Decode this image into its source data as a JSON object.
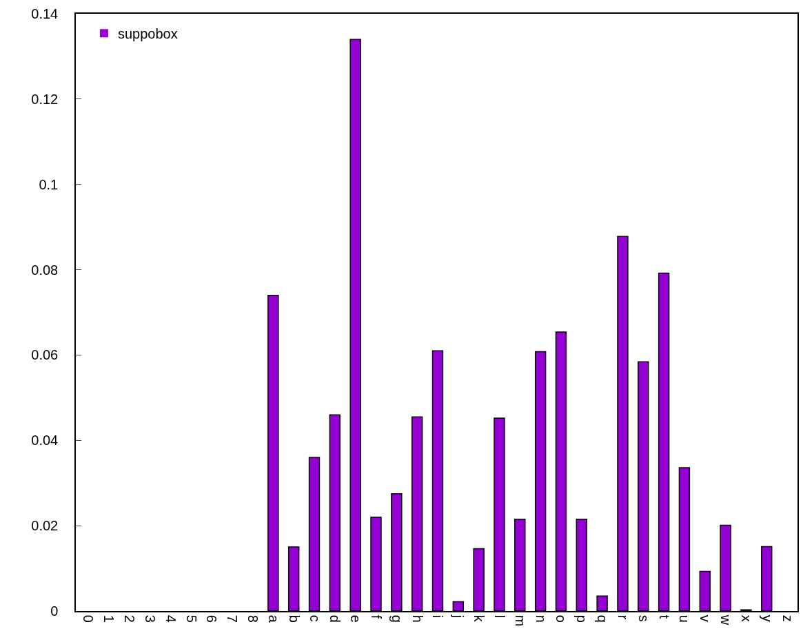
{
  "chart_data": {
    "type": "bar",
    "categories": [
      "0",
      "1",
      "2",
      "3",
      "4",
      "5",
      "6",
      "7",
      "8",
      "a",
      "b",
      "c",
      "d",
      "e",
      "f",
      "g",
      "h",
      "i",
      "j",
      "k",
      "l",
      "m",
      "n",
      "o",
      "p",
      "q",
      "r",
      "s",
      "t",
      "u",
      "v",
      "w",
      "x",
      "y",
      "z"
    ],
    "series": [
      {
        "name": "suppobox",
        "color": "#9400d3",
        "values": [
          0,
          0,
          0,
          0,
          0,
          0,
          0,
          0,
          0,
          0.074,
          0.015,
          0.036,
          0.046,
          0.134,
          0.022,
          0.0275,
          0.0455,
          0.061,
          0.0022,
          0.0146,
          0.0452,
          0.0215,
          0.0608,
          0.0654,
          0.0215,
          0.0035,
          0.0878,
          0.0584,
          0.0792,
          0.0336,
          0.0093,
          0.0201,
          0.0003,
          0.0151,
          0
        ]
      }
    ],
    "ylim": [
      0,
      0.14
    ],
    "yticks": [
      0,
      0.02,
      0.04,
      0.06,
      0.08,
      0.1,
      0.12,
      0.14
    ],
    "grid": false,
    "legend": "top left"
  }
}
